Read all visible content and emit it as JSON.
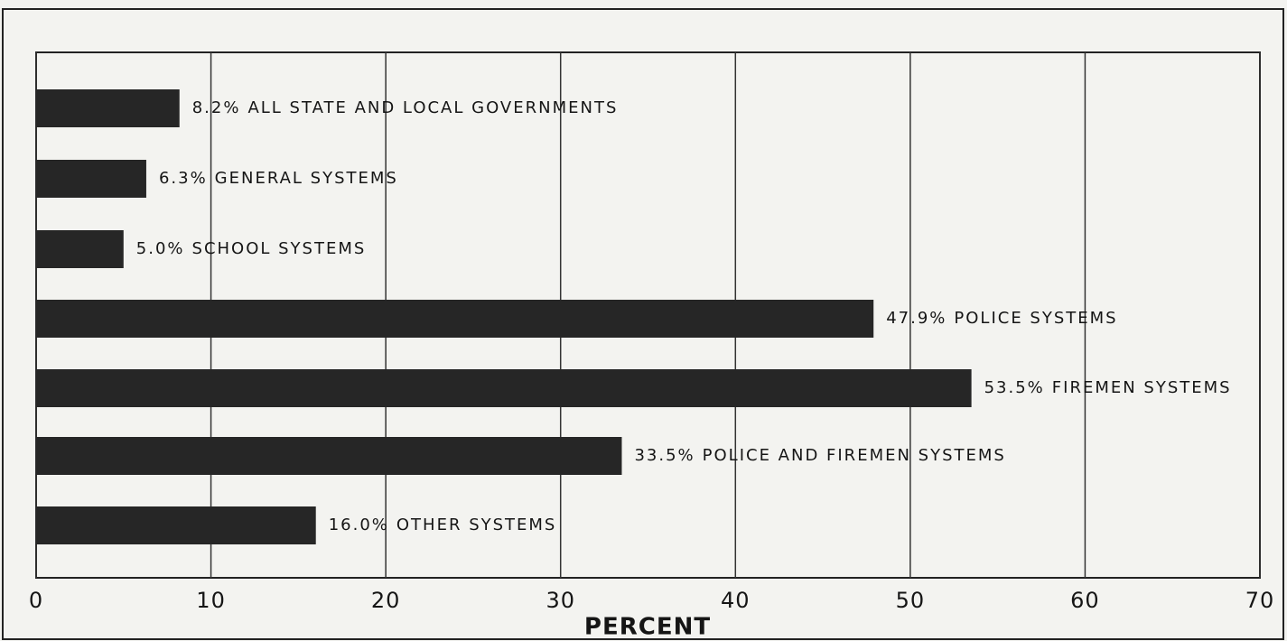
{
  "chart_data": {
    "type": "barh",
    "categories": [
      "ALL STATE AND LOCAL GOVERNMENTS",
      "GENERAL SYSTEMS",
      "SCHOOL SYSTEMS",
      "POLICE SYSTEMS",
      "FIREMEN SYSTEMS",
      "POLICE AND FIREMEN SYSTEMS",
      "OTHER SYSTEMS"
    ],
    "values": [
      8.2,
      6.3,
      5.0,
      47.9,
      53.5,
      33.5,
      16.0
    ],
    "value_labels": [
      "8.2%",
      "6.3%",
      "5.0%",
      "47.9%",
      "53.5%",
      "33.5%",
      "16.0%"
    ],
    "color": "#262626",
    "xlim": [
      0,
      70
    ],
    "xticks": [
      0,
      10,
      20,
      30,
      40,
      50,
      60,
      70
    ],
    "xlabel": "PERCENT",
    "grid": true
  }
}
